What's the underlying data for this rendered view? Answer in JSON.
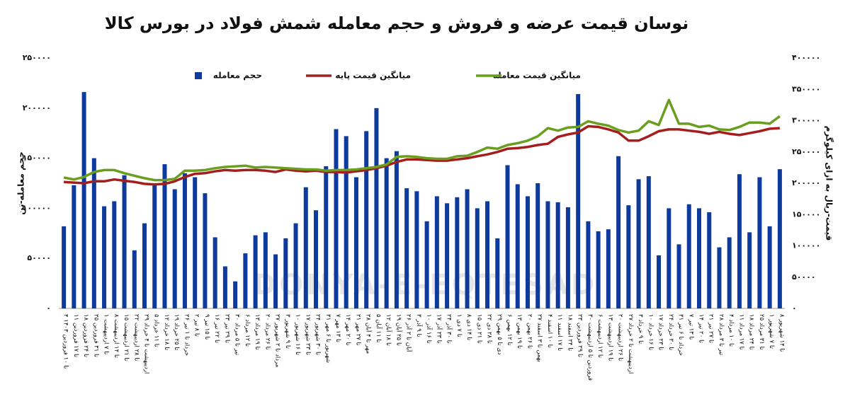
{
  "chart_data": {
    "type": "bar",
    "title": "نوسان قیمت عرضه و فروش و حجم معامله شمش فولاد در بورس کالا",
    "watermark": "DONYA-E-EQTESAD",
    "y_label": "حجم معامله-تن",
    "y2_label": "قیمت-ریال به ازای کیلوگرم",
    "categories": [
      "۴ تا ۱۰ فروردین ۱۴۰۳",
      "۱۱ تا ۱۷ فروردین",
      "۱۸ تا ۲۴ فروردین",
      "۲۵ تا ۳۱ فروردین",
      "۱ تا ۷ اردیبهشت",
      "۸ تا ۱۴ اردیبهشت",
      "۱۵ تا ۲۱ اردیبهشت",
      "۲۲ تا ۲۸ اردیبهشت",
      "۲۹ اردیبهشت تا ۴ خرداد",
      "۵ تا ۱۱ خرداد",
      "۱۲ تا ۱۸ خرداد",
      "۱۹ تا ۲۵ خرداد",
      "۲۶ خرداد تا ۱ تیر",
      "۲ تا ۸ تیر",
      "۹ تا ۱۵ تیر",
      "۱۶ تا ۲۲ تیر",
      "۲۳ تا ۲۹ تیر",
      "۳۰ تیر تا ۵ مرداد",
      "۶ تا ۱۲ مرداد",
      "۱۳ تا ۱۹ مرداد",
      "۲۰ تا ۲۶ مرداد",
      "۲۷ مرداد تا ۲ شهریور",
      "۳ تا ۹ شهریور",
      "۱۰ تا ۱۶ شهریور",
      "۱۷ تا ۲۳ شهریور",
      "۲۴ تا ۳۰ شهریور",
      "۳۱ شهریور تا ۶ مهر",
      "۷ تا ۱۳ مهر",
      "۱۴ تا ۲۰ مهر",
      "۲۱ تا ۲۷ مهر",
      "۲۸ مهر تا ۴ آبان",
      "۵ تا ۱۱ آبان",
      "۱۲ تا ۱۸ آبان",
      "۱۹ تا ۲۵ آبان",
      "۲۶ آبان تا ۲ آذر",
      "۳ تا ۹ آذر",
      "۱۰ تا ۱۶ آذر",
      "۱۷ تا ۲۳ آذر",
      "۲۴ تا ۳۰ آذر",
      "۱ تا ۷ دی",
      "۸ تا ۱۴ دی",
      "۱۵ تا ۲۱ دی",
      "۲۲ تا ۲۸ دی",
      "۲۹ دی تا ۵ بهمن",
      "۶ تا ۱۲ بهمن",
      "۱۳ تا ۱۹ بهمن",
      "۲۰ تا ۲۶ بهمن",
      "۲۷ بهمن تا ۳ اسفند",
      "۴ تا ۱۰ اسفند",
      "۱۱ تا ۱۷ اسفند",
      "۱۸ تا ۲۴ اسفند",
      "۲۳ تا ۲۹ فروردین",
      "۳۰ فروردین تا ۵ اردیبهشت",
      "۶ تا ۱۲ اردیبهشت",
      "۱۳ تا ۱۹ اردیبهشت",
      "۲۰ تا ۲۶ اردیبهشت",
      "۲۷ اردیبهشت تا ۲ خرداد",
      "۳ تا ۹ خرداد",
      "۱۰ تا ۱۶ خرداد",
      "۱۷ تا ۲۳ خرداد",
      "۲۴ تا ۳۰ خرداد",
      "۳۱ خرداد تا ۶ تیر",
      "۷ تا ۱۳ تیر",
      "۱۴ تا ۲۰ تیر",
      "۲۱ تا ۲۷ تیر",
      "۲۸ تیر تا ۳ مرداد",
      "۴ تا ۱۰ مرداد",
      "۱۱ تا ۱۷ مرداد",
      "۱۸ تا ۲۴ مرداد",
      "۲۵ تا ۳۱ مرداد",
      "۱ تا ۷ شهریور",
      "۸ تا ۱۴ شهریور"
    ],
    "series": [
      {
        "name": "حجم معامله",
        "type": "bar",
        "color": "#0d3a9c",
        "values": [
          82000,
          123000,
          216000,
          150000,
          102000,
          107000,
          133000,
          58000,
          85000,
          124000,
          144000,
          119000,
          135000,
          131000,
          115000,
          71000,
          42000,
          27000,
          55000,
          73000,
          76000,
          54000,
          70000,
          85000,
          121000,
          98000,
          142000,
          179000,
          172000,
          131000,
          177000,
          200000,
          150000,
          157000,
          120000,
          117000,
          87000,
          112000,
          105000,
          111000,
          119000,
          100000,
          107000,
          70000,
          143000,
          124000,
          112000,
          125000,
          107000,
          106000,
          101000,
          214000,
          87000,
          77000,
          79000,
          152000,
          103000,
          129000,
          132000,
          53000,
          100000,
          64000,
          104000,
          100000,
          96000,
          61000,
          71000,
          134000,
          76000,
          131000,
          82000,
          139000
        ]
      },
      {
        "name": "میانگین قیمت پایه",
        "type": "line",
        "axis": "y2",
        "color": "#a51e1e",
        "values": [
          202000,
          201000,
          200000,
          203000,
          203000,
          206000,
          204000,
          202000,
          199000,
          198000,
          199000,
          203000,
          210000,
          215000,
          216000,
          219000,
          221000,
          220000,
          221000,
          221000,
          220000,
          218000,
          222000,
          220000,
          219000,
          220000,
          218000,
          218000,
          217000,
          219000,
          221000,
          224000,
          228000,
          234000,
          238000,
          238000,
          237000,
          236000,
          236000,
          238000,
          240000,
          243000,
          246000,
          250000,
          255000,
          256000,
          258000,
          261000,
          263000,
          274000,
          278000,
          281000,
          291000,
          290000,
          286000,
          281000,
          268000,
          268000,
          275000,
          283000,
          286000,
          286000,
          284000,
          282000,
          279000,
          282000,
          279000,
          277000,
          280000,
          283000,
          287000,
          288000
        ]
      },
      {
        "name": "میانگین قیمت معامله",
        "type": "line",
        "axis": "y2",
        "color": "#6a9e1f",
        "values": [
          209000,
          206000,
          210000,
          218000,
          221000,
          221000,
          216000,
          212000,
          208000,
          205000,
          205000,
          207000,
          220000,
          220000,
          221000,
          224000,
          226000,
          227000,
          228000,
          225000,
          226000,
          225000,
          224000,
          223000,
          222000,
          222000,
          220000,
          221000,
          221000,
          222000,
          224000,
          226000,
          230000,
          242000,
          243000,
          242000,
          240000,
          239000,
          239000,
          243000,
          244000,
          250000,
          257000,
          255000,
          261000,
          264000,
          268000,
          275000,
          288000,
          284000,
          289000,
          290000,
          299000,
          295000,
          292000,
          285000,
          281000,
          284000,
          299000,
          293000,
          333000,
          295000,
          295000,
          290000,
          292000,
          286000,
          285000,
          290000,
          297000,
          297000,
          295000,
          307000
        ]
      }
    ],
    "ylim": [
      0,
      250000
    ],
    "yticks": [
      {
        "value": 0,
        "label": "۰"
      },
      {
        "value": 50000,
        "label": "۵۰۰۰۰"
      },
      {
        "value": 100000,
        "label": "۱۰۰۰۰۰"
      },
      {
        "value": 150000,
        "label": "۱۵۰۰۰۰"
      },
      {
        "value": 200000,
        "label": "۲۰۰۰۰۰"
      },
      {
        "value": 250000,
        "label": "۲۵۰۰۰۰"
      }
    ],
    "y2lim": [
      0,
      400000
    ],
    "y2ticks": [
      {
        "value": 0,
        "label": "۰"
      },
      {
        "value": 50000,
        "label": "۵۰۰۰۰"
      },
      {
        "value": 100000,
        "label": "۱۰۰۰۰۰"
      },
      {
        "value": 150000,
        "label": "۱۵۰۰۰۰"
      },
      {
        "value": 200000,
        "label": "۲۰۰۰۰۰"
      },
      {
        "value": 250000,
        "label": "۲۵۰۰۰۰"
      },
      {
        "value": 300000,
        "label": "۳۰۰۰۰۰"
      },
      {
        "value": 350000,
        "label": "۳۵۰۰۰۰"
      },
      {
        "value": 400000,
        "label": "۴۰۰۰۰۰"
      }
    ],
    "grid": false,
    "legend": "top"
  }
}
